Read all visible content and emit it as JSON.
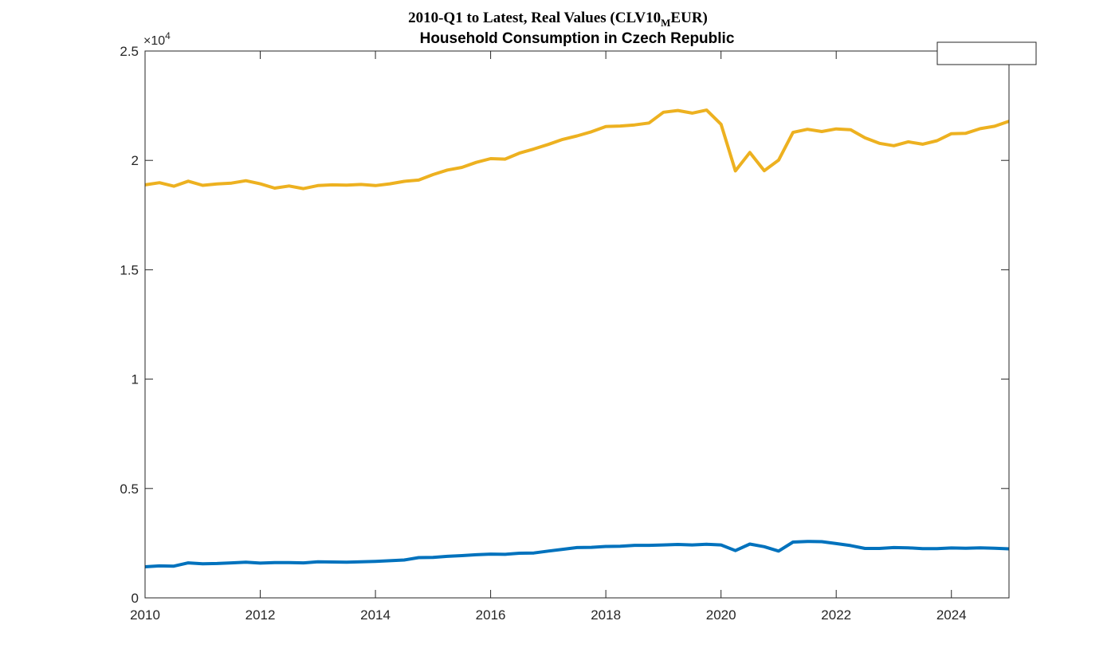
{
  "chart_data": {
    "type": "line",
    "title_line1_prefix": "2010-Q1  to  Latest,  Real  Values  (CLV10",
    "title_line1_subscript": "M",
    "title_line1_suffix": "EUR)",
    "title_line2": "Household Consumption in Czech Republic",
    "xlabel": "",
    "ylabel": "",
    "exponent_label": "×10",
    "exponent_power": "4",
    "xlim": [
      2010,
      2025
    ],
    "ylim": [
      0,
      25000
    ],
    "x_ticks": [
      2010,
      2012,
      2014,
      2016,
      2018,
      2020,
      2022,
      2024
    ],
    "x_tick_labels": [
      "2010",
      "2012",
      "2014",
      "2016",
      "2018",
      "2020",
      "2022",
      "2024"
    ],
    "y_ticks": [
      0,
      5000,
      10000,
      15000,
      20000,
      25000
    ],
    "y_tick_labels": [
      "0",
      "0.5",
      "1",
      "1.5",
      "2",
      "2.5"
    ],
    "grid": false,
    "legend": {
      "placement": "top-right",
      "entries": []
    },
    "series": [
      {
        "color": "#0072BD",
        "x": [
          2010.0,
          2010.25,
          2010.5,
          2010.75,
          2011.0,
          2011.25,
          2011.5,
          2011.75,
          2012.0,
          2012.25,
          2012.5,
          2012.75,
          2013.0,
          2013.25,
          2013.5,
          2013.75,
          2014.0,
          2014.25,
          2014.5,
          2014.75,
          2015.0,
          2015.25,
          2015.5,
          2015.75,
          2016.0,
          2016.25,
          2016.5,
          2016.75,
          2017.0,
          2017.25,
          2017.5,
          2017.75,
          2018.0,
          2018.25,
          2018.5,
          2018.75,
          2019.0,
          2019.25,
          2019.5,
          2019.75,
          2020.0,
          2020.25,
          2020.5,
          2020.75,
          2021.0,
          2021.25,
          2021.5,
          2021.75,
          2022.0,
          2022.25,
          2022.5,
          2022.75,
          2023.0,
          2023.25,
          2023.5,
          2023.75,
          2024.0,
          2024.25,
          2024.5,
          2024.75,
          2025.0
        ],
        "values": [
          1420,
          1460,
          1450,
          1600,
          1560,
          1570,
          1600,
          1630,
          1590,
          1610,
          1610,
          1600,
          1650,
          1640,
          1630,
          1650,
          1670,
          1700,
          1730,
          1840,
          1850,
          1900,
          1930,
          1970,
          2000,
          1990,
          2040,
          2050,
          2140,
          2220,
          2300,
          2310,
          2350,
          2360,
          2400,
          2400,
          2420,
          2440,
          2420,
          2450,
          2420,
          2160,
          2460,
          2340,
          2140,
          2550,
          2580,
          2570,
          2480,
          2390,
          2260,
          2260,
          2300,
          2290,
          2250,
          2250,
          2280,
          2270,
          2290,
          2270,
          2240
        ]
      },
      {
        "color": "#EDB120",
        "x": [
          2010.0,
          2010.25,
          2010.5,
          2010.75,
          2011.0,
          2011.25,
          2011.5,
          2011.75,
          2012.0,
          2012.25,
          2012.5,
          2012.75,
          2013.0,
          2013.25,
          2013.5,
          2013.75,
          2014.0,
          2014.25,
          2014.5,
          2014.75,
          2015.0,
          2015.25,
          2015.5,
          2015.75,
          2016.0,
          2016.25,
          2016.5,
          2016.75,
          2017.0,
          2017.25,
          2017.5,
          2017.75,
          2018.0,
          2018.25,
          2018.5,
          2018.75,
          2019.0,
          2019.25,
          2019.5,
          2019.75,
          2020.0,
          2020.25,
          2020.5,
          2020.75,
          2021.0,
          2021.25,
          2021.5,
          2021.75,
          2022.0,
          2022.25,
          2022.5,
          2022.75,
          2023.0,
          2023.25,
          2023.5,
          2023.75,
          2024.0,
          2024.25,
          2024.5,
          2024.75,
          2025.0
        ],
        "values": [
          18880,
          18980,
          18820,
          19050,
          18860,
          18920,
          18960,
          19070,
          18930,
          18730,
          18830,
          18710,
          18850,
          18880,
          18870,
          18900,
          18850,
          18930,
          19040,
          19100,
          19350,
          19560,
          19680,
          19910,
          20080,
          20060,
          20330,
          20520,
          20730,
          20960,
          21120,
          21310,
          21550,
          21570,
          21620,
          21710,
          22200,
          22280,
          22160,
          22300,
          21650,
          19520,
          20360,
          19530,
          20010,
          21280,
          21420,
          21320,
          21440,
          21400,
          21030,
          20780,
          20670,
          20850,
          20740,
          20900,
          21220,
          21240,
          21450,
          21560,
          21790
        ]
      }
    ]
  }
}
